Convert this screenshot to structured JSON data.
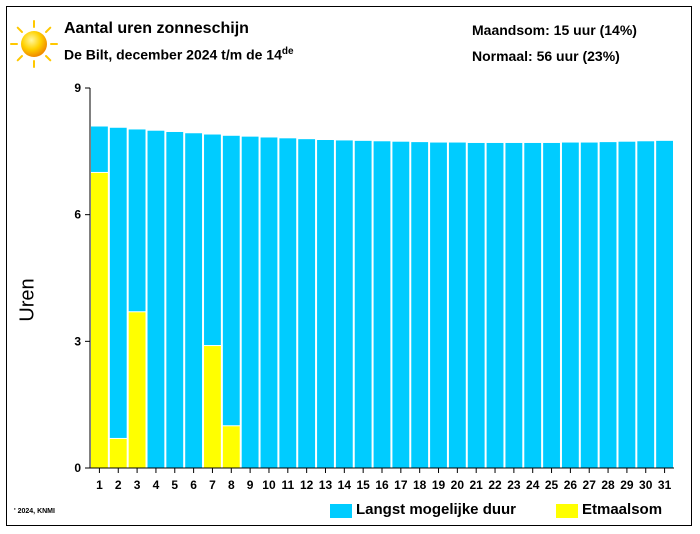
{
  "header": {
    "title": "Aantal uren zonneschijn",
    "subtitle_main": "De Bilt, december 2024 t/m de 14",
    "subtitle_sup": "de",
    "stat_month": "Maandsom: 15 uur (14%)",
    "stat_normal": "Normaal: 56 uur (23%)"
  },
  "copyright": "' 2024, KNMI",
  "icons": {
    "sun": "sun-icon"
  },
  "colors": {
    "max_duration": "#00CCFF",
    "daily_sum": "#FFFF00",
    "bar_border": "#ffffff",
    "axis": "#000000"
  },
  "chart_data": {
    "type": "bar",
    "ylabel": "Uren",
    "ylim": [
      0,
      9
    ],
    "yticks": [
      "0",
      "3",
      "6",
      "9"
    ],
    "categories": [
      "1",
      "2",
      "3",
      "4",
      "5",
      "6",
      "7",
      "8",
      "9",
      "10",
      "11",
      "12",
      "13",
      "14",
      "15",
      "16",
      "17",
      "18",
      "19",
      "20",
      "21",
      "22",
      "23",
      "24",
      "25",
      "26",
      "27",
      "28",
      "29",
      "30",
      "31"
    ],
    "legend_position": "bottom-right",
    "series": [
      {
        "name": "Langst mogelijke duur",
        "values": [
          8.1,
          8.07,
          8.03,
          8.0,
          7.97,
          7.94,
          7.91,
          7.88,
          7.86,
          7.84,
          7.82,
          7.8,
          7.78,
          7.77,
          7.76,
          7.75,
          7.74,
          7.73,
          7.72,
          7.72,
          7.71,
          7.71,
          7.71,
          7.71,
          7.71,
          7.72,
          7.72,
          7.73,
          7.74,
          7.75,
          7.76
        ]
      },
      {
        "name": "Etmaalsom",
        "values": [
          7.0,
          0.7,
          3.7,
          0,
          0,
          0,
          2.9,
          1.0,
          null,
          null,
          null,
          null,
          null,
          null,
          null,
          null,
          null,
          null,
          null,
          null,
          null,
          null,
          null,
          null,
          null,
          null,
          null,
          null,
          null,
          null,
          null
        ]
      }
    ]
  }
}
